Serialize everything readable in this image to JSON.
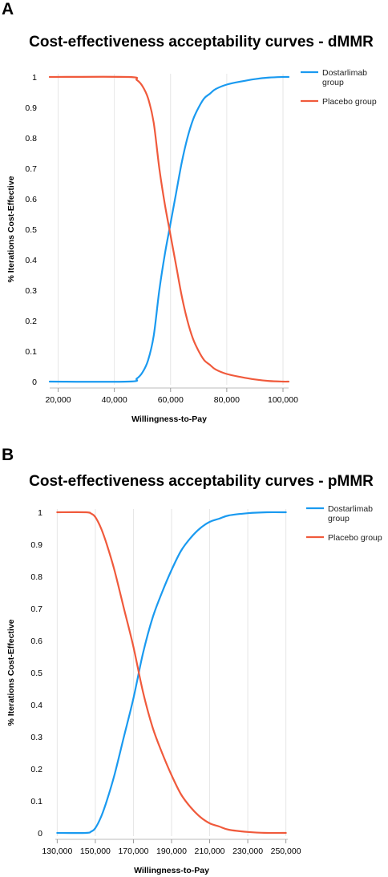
{
  "panels": [
    {
      "label": "A",
      "title": "Cost-effectiveness acceptability curves - dMMR"
    },
    {
      "label": "B",
      "title": "Cost-effectiveness acceptability curves - pMMR"
    }
  ],
  "chart_data": [
    {
      "type": "line",
      "title": "Cost-effectiveness acceptability curves - dMMR",
      "xlabel": "Willingness-to-Pay",
      "ylabel": "% Iterations Cost-Effective",
      "xlim": [
        17000,
        102000
      ],
      "ylim": [
        0,
        1
      ],
      "xticks": [
        20000,
        40000,
        60000,
        80000,
        100000
      ],
      "xtick_labels": [
        "20,000",
        "40,000",
        "60,000",
        "80,000",
        "100,000"
      ],
      "yticks": [
        0,
        0.1,
        0.2,
        0.3,
        0.4,
        0.5,
        0.6,
        0.7,
        0.8,
        0.9,
        1
      ],
      "ytick_labels": [
        "0",
        "0.1",
        "0.2",
        "0.3",
        "0.4",
        "0.5",
        "0.6",
        "0.7",
        "0.8",
        "0.9",
        "1"
      ],
      "grid": "vertical",
      "legend_position": "top-right",
      "series": [
        {
          "name": "Dostarlimab group",
          "color": "#1a9af0",
          "legend_lines": [
            "Dostarlimab",
            "group"
          ],
          "x": [
            17000,
            45000,
            48000,
            50000,
            52000,
            54000,
            56000,
            58000,
            60000,
            62000,
            64000,
            66000,
            68000,
            70000,
            72000,
            74000,
            76000,
            80000,
            85000,
            90000,
            95000,
            100000,
            102000
          ],
          "y": [
            0,
            0,
            0.01,
            0.03,
            0.07,
            0.15,
            0.3,
            0.42,
            0.52,
            0.62,
            0.72,
            0.8,
            0.86,
            0.9,
            0.93,
            0.945,
            0.96,
            0.975,
            0.985,
            0.993,
            0.998,
            1,
            1
          ]
        },
        {
          "name": "Placebo group",
          "color": "#f05a3c",
          "legend_lines": [
            "Placebo group"
          ],
          "x": [
            17000,
            45000,
            48000,
            50000,
            52000,
            54000,
            56000,
            58000,
            60000,
            62000,
            64000,
            66000,
            68000,
            70000,
            72000,
            74000,
            76000,
            80000,
            85000,
            90000,
            95000,
            100000,
            102000
          ],
          "y": [
            1,
            1,
            0.99,
            0.97,
            0.93,
            0.85,
            0.7,
            0.58,
            0.48,
            0.38,
            0.28,
            0.2,
            0.14,
            0.1,
            0.07,
            0.055,
            0.04,
            0.025,
            0.015,
            0.007,
            0.002,
            0,
            0
          ]
        }
      ]
    },
    {
      "type": "line",
      "title": "Cost-effectiveness acceptability curves - pMMR",
      "xlabel": "Willingness-to-Pay",
      "ylabel": "% Iterations Cost-Effective",
      "xlim": [
        129000,
        251000
      ],
      "ylim": [
        0,
        1
      ],
      "xticks": [
        130000,
        150000,
        170000,
        190000,
        210000,
        230000,
        250000
      ],
      "xtick_labels": [
        "130,000",
        "150,000",
        "170,000",
        "190,000",
        "210,000",
        "230,000",
        "250,000"
      ],
      "yticks": [
        0,
        0.1,
        0.2,
        0.3,
        0.4,
        0.5,
        0.6,
        0.7,
        0.8,
        0.9,
        1
      ],
      "ytick_labels": [
        "0",
        "0.1",
        "0.2",
        "0.3",
        "0.4",
        "0.5",
        "0.6",
        "0.7",
        "0.8",
        "0.9",
        "1"
      ],
      "grid": "vertical",
      "legend_position": "top-right",
      "series": [
        {
          "name": "Dostarlimab group",
          "color": "#1a9af0",
          "legend_lines": [
            "Dostarlimab",
            "group"
          ],
          "x": [
            130000,
            145000,
            148000,
            150000,
            153000,
            156000,
            160000,
            165000,
            170000,
            175000,
            180000,
            185000,
            190000,
            195000,
            200000,
            205000,
            210000,
            215000,
            220000,
            230000,
            240000,
            250000
          ],
          "y": [
            0,
            0,
            0.005,
            0.015,
            0.05,
            0.1,
            0.18,
            0.3,
            0.42,
            0.56,
            0.67,
            0.75,
            0.82,
            0.88,
            0.92,
            0.95,
            0.97,
            0.98,
            0.99,
            0.997,
            1,
            1
          ]
        },
        {
          "name": "Placebo group",
          "color": "#f05a3c",
          "legend_lines": [
            "Placebo group"
          ],
          "x": [
            130000,
            145000,
            148000,
            150000,
            153000,
            156000,
            160000,
            165000,
            170000,
            175000,
            180000,
            185000,
            190000,
            195000,
            200000,
            205000,
            210000,
            215000,
            220000,
            230000,
            240000,
            250000
          ],
          "y": [
            1,
            1,
            0.995,
            0.985,
            0.95,
            0.9,
            0.82,
            0.7,
            0.58,
            0.44,
            0.33,
            0.25,
            0.18,
            0.12,
            0.08,
            0.05,
            0.03,
            0.02,
            0.01,
            0.003,
            0,
            0
          ]
        }
      ]
    }
  ]
}
